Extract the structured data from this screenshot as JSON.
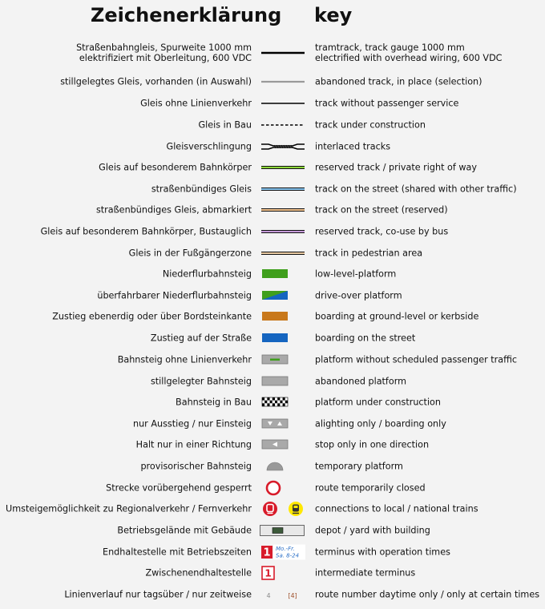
{
  "header": {
    "de": "Zeichenerklärung",
    "en": "key"
  },
  "rows": [
    {
      "de": "Straßenbahngleis, Spurweite 1000 mm",
      "de2": "elektrifiziert mit Oberleitung, 600 VDC",
      "en": "tramtrack, track gauge 1000 mm",
      "en2": "electrified with overhead wiring, 600 VDC",
      "symbol": "line-black-thick"
    },
    {
      "de": "stillgelegtes Gleis, vorhanden (in Auswahl)",
      "en": "abandoned track, in place (selection)",
      "symbol": "line-gray"
    },
    {
      "de": "Gleis ohne Linienverkehr",
      "en": "track without passenger service",
      "symbol": "line-black-thin"
    },
    {
      "de": "Gleis in Bau",
      "en": "track under construction",
      "symbol": "line-dashed"
    },
    {
      "de": "Gleisverschlingung",
      "en": "interlaced tracks",
      "symbol": "line-interlaced"
    },
    {
      "de": "Gleis auf besonderem Bahnkörper",
      "en": "reserved track / private right of way",
      "symbol": "line-green"
    },
    {
      "de": "straßenbündiges Gleis",
      "en": "track on the street (shared with other traffic)",
      "symbol": "line-blue"
    },
    {
      "de": "straßenbündiges Gleis, abmarkiert",
      "en": "track on the street (reserved)",
      "symbol": "line-orange"
    },
    {
      "de": "Gleis auf besonderem Bahnkörper, Bustauglich",
      "en": "reserved track, co-use by bus",
      "symbol": "line-purple"
    },
    {
      "de": "Gleis in der Fußgängerzone",
      "en": "track in pedestrian area",
      "symbol": "line-brown"
    },
    {
      "de": "Niederflurbahnsteig",
      "en": "low-level-platform",
      "symbol": "platform-green"
    },
    {
      "de": "überfahrbarer Niederflurbahnsteig",
      "en": "drive-over platform",
      "symbol": "platform-green-blue"
    },
    {
      "de": "Zustieg ebenerdig oder über Bordsteinkante",
      "en": "boarding at ground-level or kerbside",
      "symbol": "platform-orange"
    },
    {
      "de": "Zustieg auf der Straße",
      "en": "boarding on the street",
      "symbol": "platform-blue"
    },
    {
      "de": "Bahnsteig ohne Linienverkehr",
      "en": "platform without scheduled passenger traffic",
      "symbol": "platform-gray-green"
    },
    {
      "de": "stillgelegter Bahnsteig",
      "en": "abandoned platform",
      "symbol": "platform-gray"
    },
    {
      "de": "Bahnsteig in Bau",
      "en": "platform under construction",
      "symbol": "platform-checker"
    },
    {
      "de": "nur Ausstieg / nur Einsteig",
      "en": "alighting only / boarding only",
      "symbol": "platform-triangles"
    },
    {
      "de": "Halt nur in einer Richtung",
      "en": "stop only in one direction",
      "symbol": "platform-one-direction"
    },
    {
      "de": "provisorischer Bahnsteig",
      "en": "temporary platform",
      "symbol": "platform-semicircle"
    },
    {
      "de": "Strecke vorübergehend gesperrt",
      "en": "route temporarily closed",
      "symbol": "closed-sign"
    },
    {
      "de": "Umsteigemöglichkeit zu Regionalverkehr / Fernverkehr",
      "en": "connections to local / national trains",
      "symbol": "train-icons"
    },
    {
      "de": "Betriebsgelände mit Gebäude",
      "en": "depot / yard with building",
      "symbol": "depot"
    },
    {
      "de": "Endhaltestelle mit Betriebszeiten",
      "en": "terminus with operation times",
      "symbol": "terminus",
      "badge": "1",
      "times1": "Mo.-Fr.",
      "times2": "Sa. 8-24"
    },
    {
      "de": "Zwischenendhaltestelle",
      "en": "intermediate terminus",
      "symbol": "intermediate-terminus",
      "badge": "1"
    },
    {
      "de": "Linienverlauf nur tagsüber / nur zeitweise",
      "en": "route number daytime only / only at certain times",
      "symbol": "route-numbers",
      "num1": "4",
      "num2": "[4]"
    }
  ],
  "colors": {
    "green": "#3f9f1c",
    "blue": "#1565c0",
    "orange": "#c8781b",
    "gray": "#a9a9a9",
    "track_green": "#8cd63a",
    "track_blue": "#86c4ef",
    "track_orange": "#f5c48e",
    "track_purple": "#c59ad9",
    "track_brown": "#8b6a4a",
    "red": "#d81b2a",
    "yellow": "#ffe800"
  }
}
